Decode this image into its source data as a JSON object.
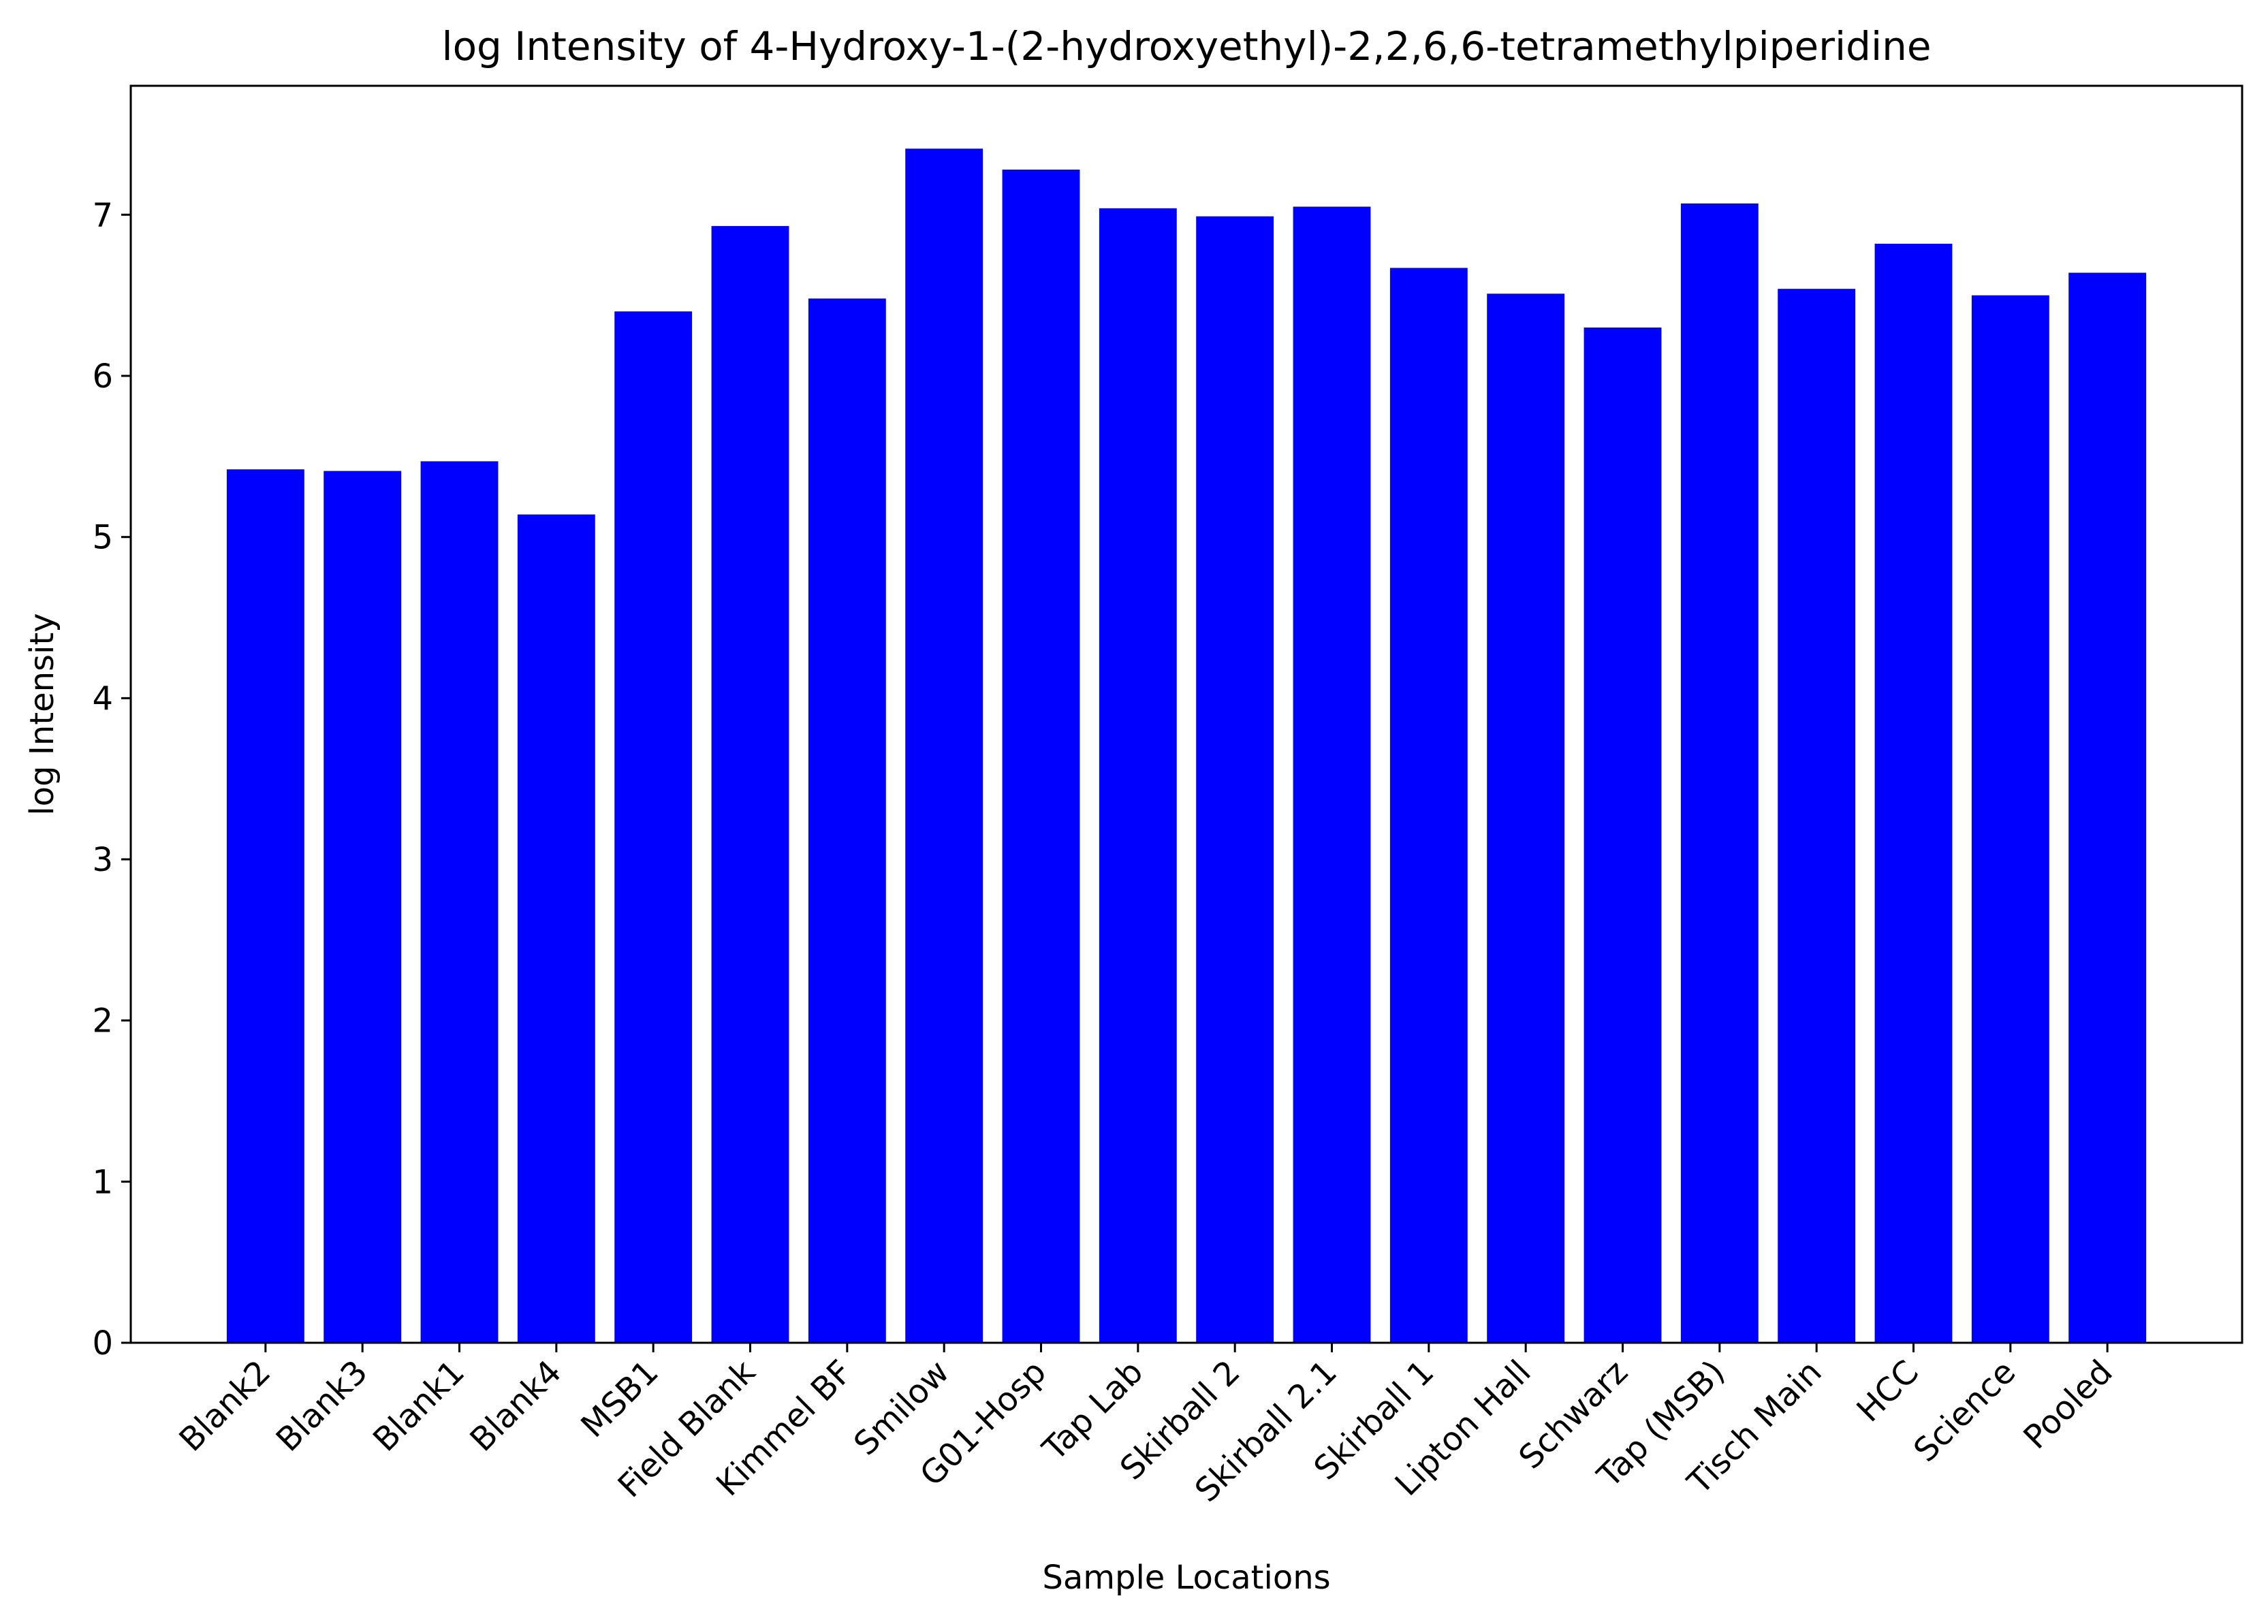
{
  "chart_data": {
    "type": "bar",
    "title": "log Intensity of 4-Hydroxy-1-(2-hydroxyethyl)-2,2,6,6-tetramethylpiperidine",
    "xlabel": "Sample Locations",
    "ylabel": "log Intensity",
    "categories": [
      "Blank2",
      "Blank3",
      "Blank1",
      "Blank4",
      "MSB1",
      "Field Blank",
      "Kimmel BF",
      "Smilow",
      "G01-Hosp",
      "Tap Lab",
      "Skirball 2",
      "Skirball 2.1",
      "Skirball 1",
      "Lipton Hall",
      "Schwarz",
      "Tap (MSB)",
      "Tisch Main",
      "HCC",
      "Science",
      "Pooled"
    ],
    "values": [
      5.42,
      5.41,
      5.47,
      5.14,
      6.4,
      6.93,
      6.48,
      7.41,
      7.28,
      7.04,
      6.99,
      7.05,
      6.67,
      6.51,
      6.3,
      7.07,
      6.54,
      6.82,
      6.5,
      6.64
    ],
    "ylim": [
      0,
      7.8
    ],
    "yticks": [
      0,
      1,
      2,
      3,
      4,
      5,
      6,
      7
    ],
    "bar_color": "#0000ff",
    "grid": false,
    "legend": "none"
  }
}
